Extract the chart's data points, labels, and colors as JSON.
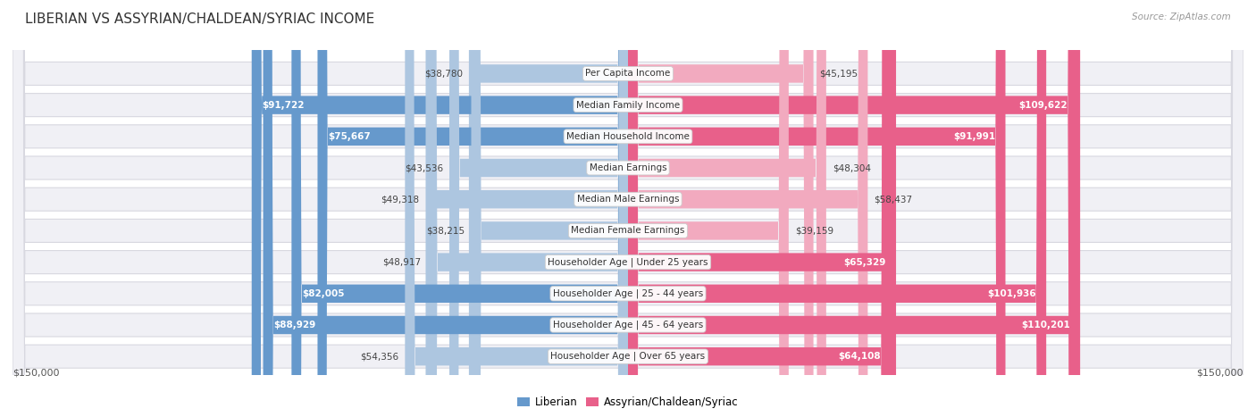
{
  "title": "LIBERIAN VS ASSYRIAN/CHALDEAN/SYRIAC INCOME",
  "source": "Source: ZipAtlas.com",
  "categories": [
    "Per Capita Income",
    "Median Family Income",
    "Median Household Income",
    "Median Earnings",
    "Median Male Earnings",
    "Median Female Earnings",
    "Householder Age | Under 25 years",
    "Householder Age | 25 - 44 years",
    "Householder Age | 45 - 64 years",
    "Householder Age | Over 65 years"
  ],
  "liberian_values": [
    38780,
    91722,
    75667,
    43536,
    49318,
    38215,
    48917,
    82005,
    88929,
    54356
  ],
  "assyrian_values": [
    45195,
    109622,
    91991,
    48304,
    58437,
    39159,
    65329,
    101936,
    110201,
    64108
  ],
  "liberian_labels": [
    "$38,780",
    "$91,722",
    "$75,667",
    "$43,536",
    "$49,318",
    "$38,215",
    "$48,917",
    "$82,005",
    "$88,929",
    "$54,356"
  ],
  "assyrian_labels": [
    "$45,195",
    "$109,622",
    "$91,991",
    "$48,304",
    "$58,437",
    "$39,159",
    "$65,329",
    "$101,936",
    "$110,201",
    "$64,108"
  ],
  "liberian_color_dark": "#6699cc",
  "liberian_color_light": "#adc6e0",
  "assyrian_color_dark": "#e8608a",
  "assyrian_color_light": "#f2aabf",
  "bar_bg_color": "#f0f0f5",
  "row_bg_border": "#d8d8e0",
  "max_value": 150000,
  "legend_liberian": "Liberian",
  "legend_assyrian": "Assyrian/Chaldean/Syriac",
  "xlabel_left": "$150,000",
  "xlabel_right": "$150,000",
  "lib_dark_thresh": 55000,
  "ass_dark_thresh": 60000,
  "title_color": "#333333",
  "label_outside_color": "#444444",
  "label_inside_color": "#ffffff",
  "source_color": "#999999",
  "bottom_label_color": "#555555"
}
